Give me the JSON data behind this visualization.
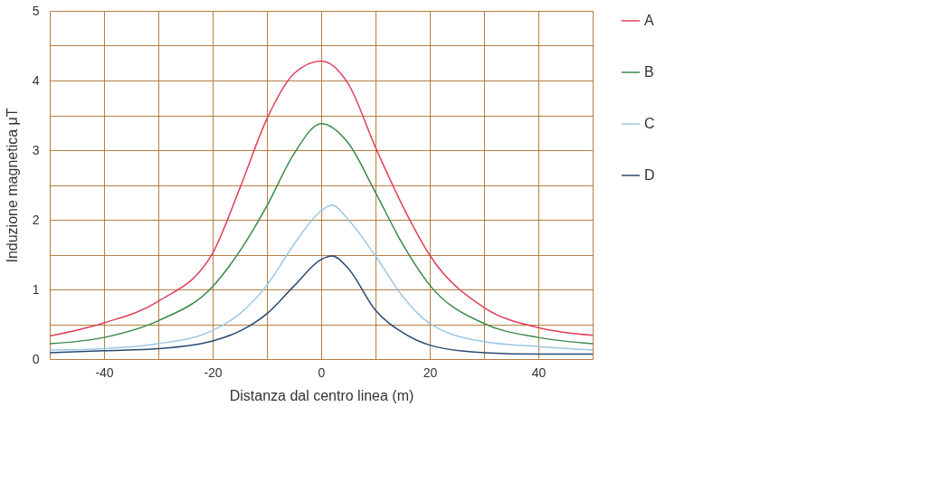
{
  "chart_data": {
    "type": "line",
    "xlabel": "Distanza dal centro linea (m)",
    "ylabel": "Induzione magnetica μT",
    "xlim": [
      -50,
      50
    ],
    "ylim": [
      0,
      5
    ],
    "xticks": [
      {
        "value": -50,
        "label": null
      },
      -40,
      {
        "value": -30,
        "label": null
      },
      -20,
      {
        "value": -10,
        "label": null
      },
      0,
      {
        "value": 10,
        "label": null
      },
      20,
      {
        "value": 30,
        "label": null
      },
      40,
      {
        "value": 50,
        "label": null
      }
    ],
    "yticks": [
      0,
      {
        "value": 0.5,
        "label": null
      },
      1,
      {
        "value": 1.5,
        "label": null
      },
      2,
      {
        "value": 2.5,
        "label": null
      },
      3,
      {
        "value": 3.5,
        "label": null
      },
      4,
      {
        "value": 4.5,
        "label": null
      },
      5
    ],
    "grid": true,
    "legend": "right",
    "marker": "none",
    "line_style": "solid",
    "series": [
      {
        "name": "A",
        "color": "#e0405a",
        "x": [
          -50,
          -40,
          -30,
          -20,
          -15,
          -10,
          -5,
          0,
          5,
          10,
          15,
          20,
          30,
          40,
          50
        ],
        "values": [
          0.33,
          0.52,
          0.83,
          1.52,
          2.45,
          3.45,
          4.1,
          4.28,
          3.95,
          3.04,
          2.2,
          1.49,
          0.74,
          0.45,
          0.34
        ]
      },
      {
        "name": "B",
        "color": "#3a8a4a",
        "x": [
          -50,
          -40,
          -30,
          -20,
          -15,
          -10,
          -5,
          0,
          5,
          10,
          15,
          20,
          30,
          40,
          50
        ],
        "values": [
          0.22,
          0.31,
          0.55,
          1.04,
          1.55,
          2.2,
          2.95,
          3.38,
          3.1,
          2.39,
          1.65,
          1.06,
          0.51,
          0.31,
          0.22
        ]
      },
      {
        "name": "C",
        "color": "#9cc8e4",
        "x": [
          -50,
          -40,
          -30,
          -20,
          -15,
          -10,
          -5,
          0,
          2,
          5,
          10,
          15,
          20,
          30,
          40,
          50
        ],
        "values": [
          0.13,
          0.15,
          0.22,
          0.41,
          0.65,
          1.06,
          1.65,
          2.13,
          2.21,
          2.0,
          1.48,
          0.9,
          0.51,
          0.25,
          0.18,
          0.13
        ]
      },
      {
        "name": "D",
        "color": "#2a4a70",
        "x": [
          -50,
          -40,
          -30,
          -20,
          -15,
          -10,
          -5,
          0,
          2,
          5,
          10,
          15,
          20,
          30,
          40,
          50
        ],
        "values": [
          0.09,
          0.12,
          0.15,
          0.26,
          0.4,
          0.65,
          1.05,
          1.43,
          1.48,
          1.3,
          0.7,
          0.38,
          0.2,
          0.09,
          0.07,
          0.07
        ]
      }
    ]
  }
}
